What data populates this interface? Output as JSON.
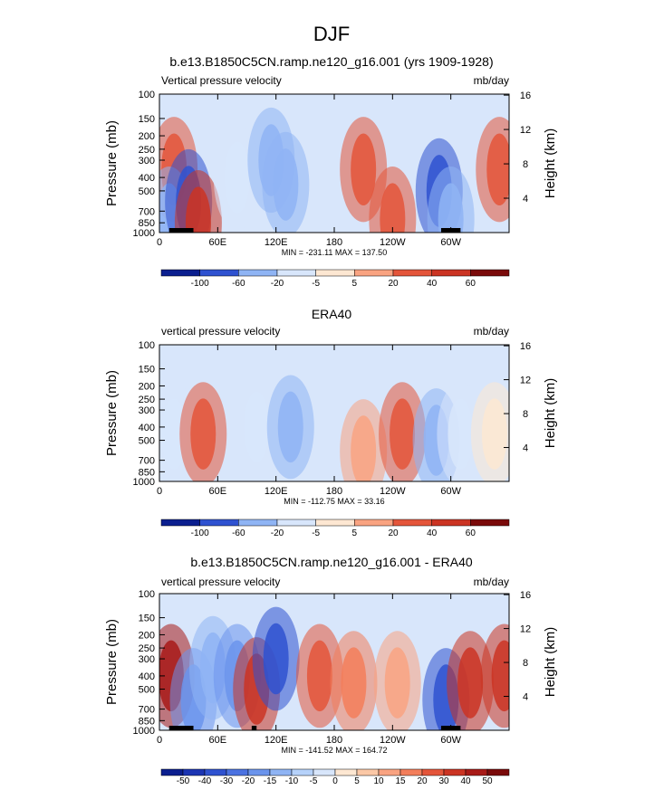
{
  "figure_title": "DJF",
  "chart_data": [
    {
      "type": "heatmap",
      "title": "b.e13.B1850C5CN.ramp.ne120_g16.001 (yrs 1909-1928)",
      "left_string": "Vertical pressure velocity",
      "right_string": "mb/day",
      "ylabel": "Pressure (mb)",
      "y2label": "Height (km)",
      "x_ticks": [
        "0",
        "60E",
        "120E",
        "180",
        "120W",
        "60W"
      ],
      "x_tick_values": [
        0,
        60,
        120,
        180,
        240,
        300
      ],
      "xlim": [
        0,
        360
      ],
      "y_ticks": [
        "100",
        "150",
        "200",
        "250",
        "300",
        "400",
        "500",
        "700",
        "850",
        "1000"
      ],
      "y_tick_values": [
        100,
        150,
        200,
        250,
        300,
        400,
        500,
        700,
        850,
        1000
      ],
      "ylim": [
        1000,
        100
      ],
      "y_scale": "log",
      "y2_ticks": [
        "4",
        "8",
        "12",
        "16"
      ],
      "y2_tick_values": [
        4,
        8,
        12,
        16
      ],
      "stats": "MIN = -231.11  MAX = 137.50",
      "min": -231.11,
      "max": 137.5,
      "colorbar_levels": [
        "-100",
        "-60",
        "-20",
        "-5",
        "5",
        "20",
        "40",
        "60"
      ],
      "topography": [
        [
          10,
          35
        ],
        [
          290,
          310
        ]
      ],
      "features": [
        {
          "lon": 15,
          "p": 350,
          "value": 20
        },
        {
          "lon": 10,
          "p": 800,
          "value": -40
        },
        {
          "lon": 30,
          "p": 600,
          "value": -100
        },
        {
          "lon": 40,
          "p": 850,
          "value": 40
        },
        {
          "lon": 80,
          "p": 400,
          "value": -20
        },
        {
          "lon": 115,
          "p": 300,
          "value": -60
        },
        {
          "lon": 130,
          "p": 450,
          "value": -40
        },
        {
          "lon": 210,
          "p": 350,
          "value": 20
        },
        {
          "lon": 240,
          "p": 800,
          "value": 20
        },
        {
          "lon": 288,
          "p": 500,
          "value": -100
        },
        {
          "lon": 300,
          "p": 800,
          "value": -60
        },
        {
          "lon": 350,
          "p": 350,
          "value": 20
        }
      ]
    },
    {
      "type": "heatmap",
      "title": "ERA40",
      "left_string": "vertical pressure velocity",
      "right_string": "mb/day",
      "ylabel": "Pressure (mb)",
      "y2label": "Height (km)",
      "x_ticks": [
        "0",
        "60E",
        "120E",
        "180",
        "120W",
        "60W"
      ],
      "x_tick_values": [
        0,
        60,
        120,
        180,
        240,
        300
      ],
      "xlim": [
        0,
        360
      ],
      "y_ticks": [
        "100",
        "150",
        "200",
        "250",
        "300",
        "400",
        "500",
        "700",
        "850",
        "1000"
      ],
      "y_tick_values": [
        100,
        150,
        200,
        250,
        300,
        400,
        500,
        700,
        850,
        1000
      ],
      "ylim": [
        1000,
        100
      ],
      "y_scale": "log",
      "y2_ticks": [
        "4",
        "8",
        "12",
        "16"
      ],
      "y2_tick_values": [
        4,
        8,
        12,
        16
      ],
      "stats": "MIN = -112.75  MAX =  33.16",
      "min": -112.75,
      "max": 33.16,
      "colorbar_levels": [
        "-100",
        "-60",
        "-20",
        "-5",
        "5",
        "20",
        "40",
        "60"
      ],
      "topography": [],
      "features": [
        {
          "lon": 15,
          "p": 450,
          "value": -20
        },
        {
          "lon": 45,
          "p": 450,
          "value": 20
        },
        {
          "lon": 100,
          "p": 400,
          "value": -20
        },
        {
          "lon": 135,
          "p": 400,
          "value": -40
        },
        {
          "lon": 210,
          "p": 600,
          "value": 5
        },
        {
          "lon": 250,
          "p": 450,
          "value": 20
        },
        {
          "lon": 285,
          "p": 500,
          "value": -60
        },
        {
          "lon": 310,
          "p": 450,
          "value": -20
        },
        {
          "lon": 345,
          "p": 450,
          "value": -5
        }
      ]
    },
    {
      "type": "heatmap",
      "title": "b.e13.B1850C5CN.ramp.ne120_g16.001 - ERA40",
      "left_string": "vertical pressure velocity",
      "right_string": "mb/day",
      "ylabel": "Pressure (mb)",
      "y2label": "Height (km)",
      "x_ticks": [
        "0",
        "60E",
        "120E",
        "180",
        "120W",
        "60W"
      ],
      "x_tick_values": [
        0,
        60,
        120,
        180,
        240,
        300
      ],
      "xlim": [
        0,
        360
      ],
      "y_ticks": [
        "100",
        "150",
        "200",
        "250",
        "300",
        "400",
        "500",
        "700",
        "850",
        "1000"
      ],
      "y_tick_values": [
        100,
        150,
        200,
        250,
        300,
        400,
        500,
        700,
        850,
        1000
      ],
      "ylim": [
        1000,
        100
      ],
      "y_scale": "log",
      "y2_ticks": [
        "4",
        "8",
        "12",
        "16"
      ],
      "y2_tick_values": [
        4,
        8,
        12,
        16
      ],
      "stats": "MIN = -141.52  MAX = 164.72",
      "min": -141.52,
      "max": 164.72,
      "colorbar_levels": [
        "-50",
        "-40",
        "-30",
        "-20",
        "-15",
        "-10",
        "-5",
        "0",
        "5",
        "10",
        "15",
        "20",
        "30",
        "40",
        "50"
      ],
      "topography": [
        [
          10,
          35
        ],
        [
          95,
          100
        ],
        [
          290,
          310
        ]
      ],
      "features": [
        {
          "lon": 12,
          "p": 400,
          "value": 40
        },
        {
          "lon": 35,
          "p": 600,
          "value": -20
        },
        {
          "lon": 55,
          "p": 350,
          "value": -15
        },
        {
          "lon": 80,
          "p": 400,
          "value": -20
        },
        {
          "lon": 100,
          "p": 500,
          "value": 30
        },
        {
          "lon": 120,
          "p": 300,
          "value": -40
        },
        {
          "lon": 165,
          "p": 400,
          "value": 20
        },
        {
          "lon": 200,
          "p": 450,
          "value": 15
        },
        {
          "lon": 245,
          "p": 450,
          "value": 10
        },
        {
          "lon": 295,
          "p": 600,
          "value": -40
        },
        {
          "lon": 320,
          "p": 450,
          "value": 30
        },
        {
          "lon": 355,
          "p": 400,
          "value": 30
        }
      ]
    }
  ],
  "colors": {
    "pos": [
      "#fde7d2",
      "#fbc8a6",
      "#f9a381",
      "#f37e5b",
      "#e4553a",
      "#cb3423",
      "#a81a17",
      "#7a0a0a"
    ],
    "neg": [
      "#d8e6fb",
      "#b6d2fa",
      "#8fb4f4",
      "#6b94ec",
      "#4b72e1",
      "#2f52d0",
      "#1c35b3",
      "#0b1f8f"
    ]
  }
}
